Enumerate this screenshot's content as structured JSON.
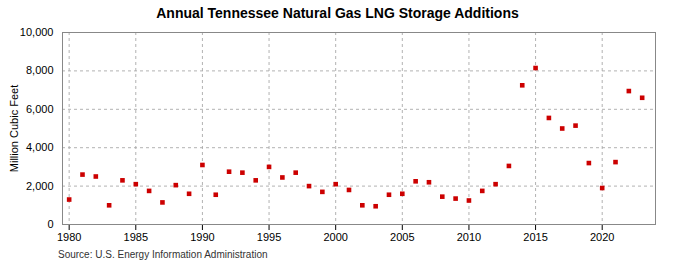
{
  "chart_data": {
    "type": "scatter",
    "title": "Annual Tennessee Natural Gas LNG Storage Additions",
    "ylabel": "Million Cubic Feet",
    "source": "Source: U.S. Energy Information Administration",
    "x": [
      1980,
      1981,
      1982,
      1983,
      1984,
      1985,
      1986,
      1987,
      1988,
      1989,
      1990,
      1991,
      1992,
      1993,
      1994,
      1995,
      1996,
      1997,
      1998,
      1999,
      2000,
      2001,
      2002,
      2003,
      2004,
      2005,
      2006,
      2007,
      2008,
      2009,
      2010,
      2011,
      2012,
      2013,
      2014,
      2015,
      2016,
      2017,
      2018,
      2019,
      2020,
      2021,
      2022,
      2023
    ],
    "values": [
      1300,
      2600,
      2500,
      1000,
      2300,
      2100,
      1750,
      1150,
      2050,
      1600,
      3100,
      1550,
      2750,
      2700,
      2300,
      3000,
      2450,
      2700,
      2000,
      1700,
      2100,
      1800,
      1000,
      950,
      1550,
      1600,
      2250,
      2200,
      1450,
      1350,
      1250,
      1750,
      2100,
      3050,
      7250,
      8150,
      5550,
      5000,
      5150,
      3200,
      1900,
      3250,
      6950,
      6600
    ],
    "color": "#cc0000",
    "marker": "square",
    "xlim": [
      1979.5,
      2024
    ],
    "xticks": [
      1980,
      1985,
      1990,
      1995,
      2000,
      2005,
      2010,
      2015,
      2020
    ],
    "ylim": [
      0,
      10000
    ],
    "yticks": [
      0,
      {
        "value": 2000,
        "label": "2,000"
      },
      {
        "value": 4000,
        "label": "4,000"
      },
      {
        "value": 6000,
        "label": "6,000"
      },
      {
        "value": 8000,
        "label": "8,000"
      },
      {
        "value": 10000,
        "label": "10,000"
      }
    ],
    "grid": true
  }
}
